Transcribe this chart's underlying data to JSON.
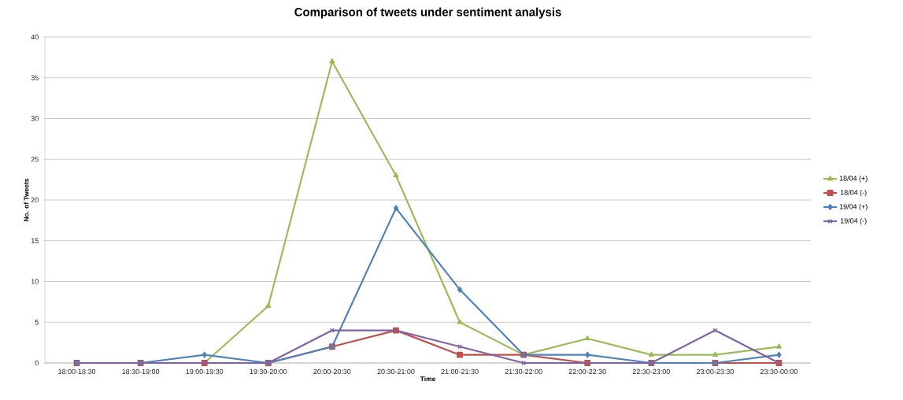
{
  "chart_data": {
    "type": "line",
    "title": "Comparison of tweets under sentiment analysis",
    "xlabel": "Time",
    "ylabel": "No. of Tweets",
    "categories": [
      "18:00-18:30",
      "18:30-19:00",
      "19:00-19:30",
      "19:30-20:00",
      "20:00-20:30",
      "20:30-21:00",
      "21:00-21:30",
      "21:30-22:00",
      "22:00-22:30",
      "22:30-23:00",
      "23:00-23:30",
      "23:30-00:00"
    ],
    "series": [
      {
        "name": "18/04 (+)",
        "color": "#9bbb59",
        "marker": "triangle",
        "values": [
          0,
          0,
          0,
          7,
          37,
          23,
          5,
          1,
          3,
          1,
          1,
          2
        ]
      },
      {
        "name": "18/04 (-)",
        "color": "#c0504d",
        "marker": "square",
        "values": [
          0,
          0,
          0,
          0,
          2,
          4,
          1,
          1,
          0,
          0,
          0,
          0
        ]
      },
      {
        "name": "19/04 (+)",
        "color": "#4f81bd",
        "marker": "diamond",
        "values": [
          0,
          0,
          1,
          0,
          2,
          19,
          9,
          1,
          1,
          0,
          0,
          1
        ]
      },
      {
        "name": "19/04 (-)",
        "color": "#8064a2",
        "marker": "cross",
        "values": [
          0,
          0,
          0,
          0,
          4,
          4,
          2,
          0,
          0,
          0,
          4,
          0
        ]
      }
    ],
    "ylim": [
      0,
      40
    ],
    "yticks": [
      0,
      5,
      10,
      15,
      20,
      25,
      30,
      35,
      40
    ],
    "grid": "y",
    "legend": "right",
    "line_style": "solid"
  }
}
